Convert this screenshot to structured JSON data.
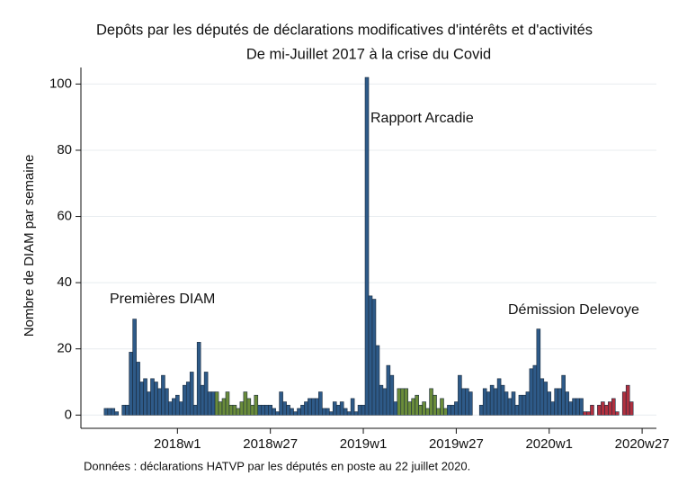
{
  "chart_data": {
    "type": "bar",
    "title": "Depôts par les députés de déclarations modificatives d'intérêts et d'activités",
    "subtitle": "De mi-Juillet 2017 à la crise du Covid",
    "ylabel": "Nombre de DIAM par semaine",
    "note": "Données : déclarations HATVP par les députés en poste au 22 juillet 2020.",
    "annotations": [
      "Premières DIAM",
      "Rapport Arcadie",
      "Démission Delevoye"
    ],
    "xlim": [
      2989,
      3150
    ],
    "xticks": [
      {
        "value": 3016,
        "label": "2018w1"
      },
      {
        "value": 3042,
        "label": "2018w27"
      },
      {
        "value": 3068,
        "label": "2019w1"
      },
      {
        "value": 3094,
        "label": "2019w27"
      },
      {
        "value": 3120,
        "label": "2020w1"
      },
      {
        "value": 3146,
        "label": "2020w27"
      }
    ],
    "ylim": [
      -4,
      105
    ],
    "yticks": [
      0,
      20,
      40,
      60,
      80,
      100
    ],
    "grid": true,
    "series": [
      {
        "color": "#2e5a88",
        "x": [
          2996,
          2997,
          2998,
          2999,
          3000,
          3001,
          3002,
          3003,
          3004,
          3005,
          3006,
          3007,
          3008,
          3009,
          3010,
          3011,
          3012,
          3013,
          3014,
          3015,
          3016,
          3017,
          3018,
          3019,
          3020,
          3021,
          3022,
          3023,
          3024,
          3025,
          3026
        ],
        "values": [
          2,
          2,
          2,
          1,
          0,
          3,
          3,
          19,
          29,
          16,
          10,
          11,
          7,
          11,
          10,
          8,
          12,
          8,
          4,
          5,
          6,
          4,
          9,
          10,
          13,
          3,
          22,
          9,
          13,
          7,
          7
        ]
      },
      {
        "color": "#6a8c3a",
        "x": [
          3027,
          3028,
          3029,
          3030,
          3031,
          3032,
          3033,
          3034,
          3035,
          3036,
          3037,
          3038
        ],
        "values": [
          7,
          4,
          5,
          7,
          3,
          3,
          2,
          4,
          7,
          5,
          3,
          6
        ]
      },
      {
        "color": "#2e5a88",
        "x": [
          3039,
          3040,
          3041,
          3042,
          3043,
          3044,
          3045,
          3046,
          3047,
          3048,
          3049,
          3050,
          3051,
          3052,
          3053,
          3054,
          3055,
          3056,
          3057,
          3058,
          3059,
          3060,
          3061,
          3062,
          3063,
          3064,
          3065,
          3066,
          3067,
          3068,
          3069,
          3070,
          3071,
          3072,
          3073,
          3074,
          3075,
          3076,
          3077
        ],
        "values": [
          3,
          3,
          3,
          3,
          2,
          1,
          7,
          4,
          3,
          2,
          1,
          2,
          3,
          4,
          5,
          5,
          5,
          7,
          2,
          2,
          1,
          4,
          3,
          4,
          2,
          1,
          5,
          1,
          3,
          3,
          102,
          36,
          35,
          21,
          9,
          8,
          15,
          12,
          4
        ]
      },
      {
        "color": "#6a8c3a",
        "x": [
          3078,
          3079,
          3080,
          3081,
          3082,
          3083,
          3084,
          3085,
          3086,
          3087,
          3088,
          3089,
          3090,
          3091
        ],
        "values": [
          8,
          8,
          8,
          4,
          5,
          6,
          3,
          4,
          2,
          8,
          6,
          2,
          5,
          2
        ]
      },
      {
        "color": "#2e5a88",
        "x": [
          3092,
          3093,
          3094,
          3095,
          3096,
          3097,
          3098,
          3099,
          3100,
          3101,
          3102,
          3103,
          3104,
          3105,
          3106,
          3107,
          3108,
          3109,
          3110,
          3111,
          3112,
          3113,
          3114,
          3115,
          3116,
          3117,
          3118,
          3119,
          3120,
          3121,
          3122,
          3123,
          3124,
          3125,
          3126,
          3127,
          3128,
          3129
        ],
        "values": [
          3,
          3,
          4,
          12,
          8,
          8,
          7,
          0,
          0,
          3,
          8,
          7,
          9,
          8,
          11,
          9,
          7,
          5,
          7,
          3,
          6,
          6,
          7,
          14,
          15,
          26,
          11,
          10,
          7,
          4,
          8,
          8,
          12,
          7,
          4,
          5,
          5,
          5
        ]
      },
      {
        "color": "#b0303f",
        "x": [
          3130,
          3131,
          3132,
          3133,
          3134,
          3135,
          3136,
          3137,
          3138,
          3139,
          3140,
          3141,
          3142,
          3143
        ],
        "values": [
          1,
          1,
          3,
          0,
          3,
          4,
          3,
          4,
          5,
          1,
          0,
          7,
          9,
          4
        ]
      }
    ]
  }
}
